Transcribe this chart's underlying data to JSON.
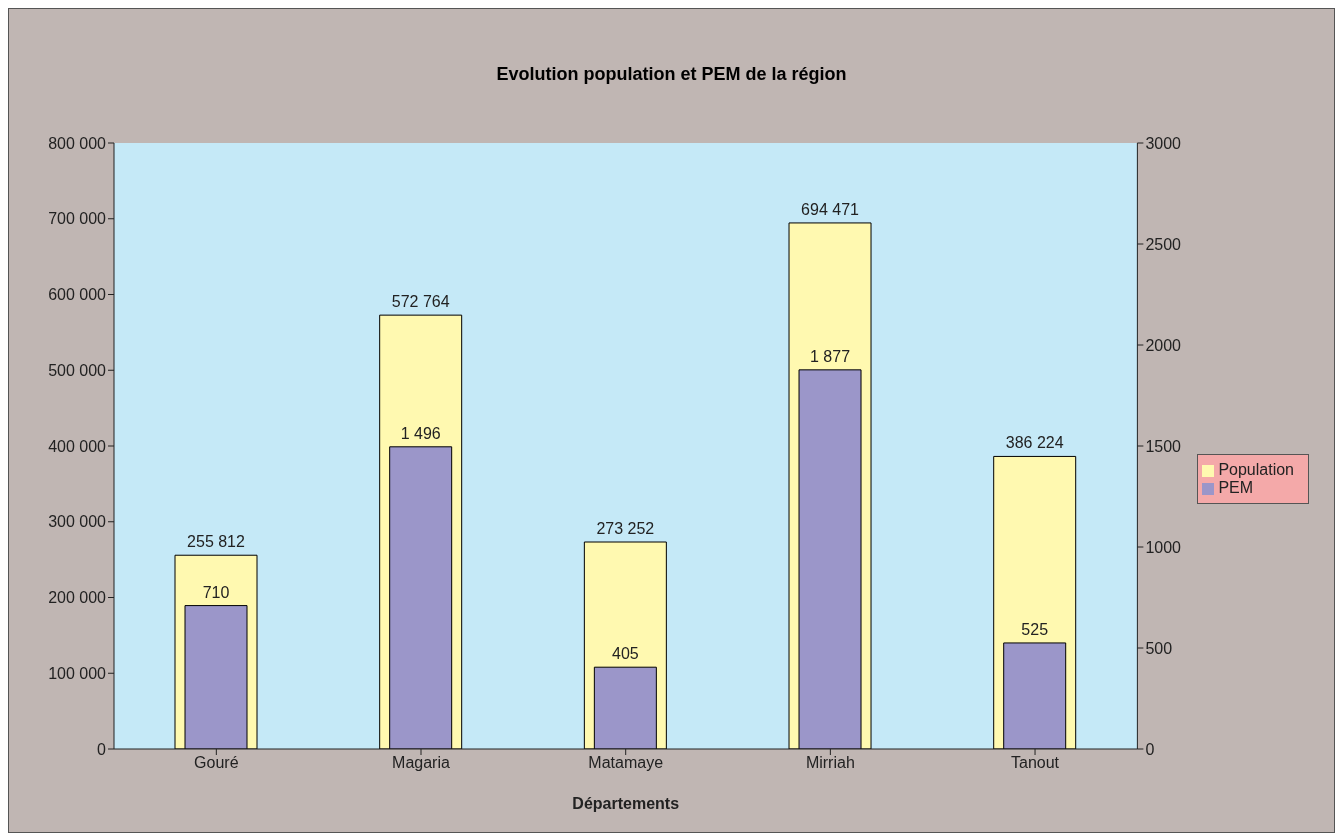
{
  "chart_data": {
    "type": "bar",
    "title": "Evolution population et PEM de la région",
    "xlabel": "Départements",
    "categories": [
      "Gouré",
      "Magaria",
      "Matamaye",
      "Mirriah",
      "Tanout"
    ],
    "series": [
      {
        "name": "Population",
        "color": "#fff9b0",
        "values": [
          255812,
          572764,
          273252,
          694471,
          386224
        ]
      },
      {
        "name": "PEM",
        "color": "#9b96c9",
        "values": [
          710,
          1496,
          405,
          1877,
          525
        ],
        "axis": "y2"
      }
    ],
    "ylim": [
      0,
      800000
    ],
    "yticks": [
      {
        "value": 0,
        "label": "0"
      },
      {
        "value": 100000,
        "label": "100 000"
      },
      {
        "value": 200000,
        "label": "200 000"
      },
      {
        "value": 300000,
        "label": "300 000"
      },
      {
        "value": 400000,
        "label": "400 000"
      },
      {
        "value": 500000,
        "label": "500 000"
      },
      {
        "value": 600000,
        "label": "600 000"
      },
      {
        "value": 700000,
        "label": "700 000"
      },
      {
        "value": 800000,
        "label": "800 000"
      }
    ],
    "y2lim": [
      0,
      3000
    ],
    "y2ticks": [
      0,
      500,
      1000,
      1500,
      2000,
      2500,
      3000
    ],
    "data_labels": true,
    "legend": "right",
    "grid": false
  }
}
